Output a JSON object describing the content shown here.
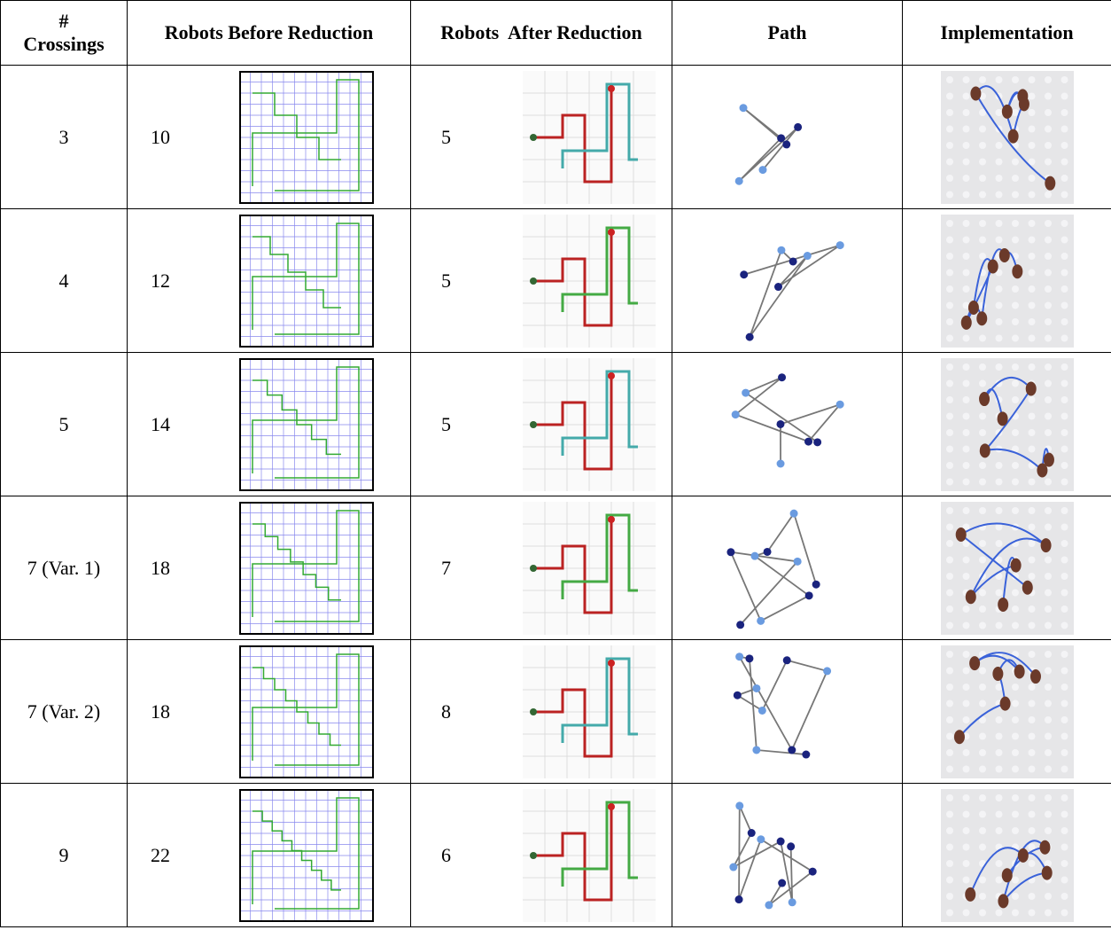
{
  "table": {
    "header": [
      "# Crossings",
      "Robots Before Reduction",
      "Robots  After Reduction",
      "Path",
      "Implementation"
    ],
    "rows": [
      {
        "crossings": "3",
        "before": 10,
        "after": 5
      },
      {
        "crossings": "4",
        "before": 12,
        "after": 5
      },
      {
        "crossings": "5",
        "before": 14,
        "after": 5
      },
      {
        "crossings": "7 (Var. 1)",
        "before": 18,
        "after": 7
      },
      {
        "crossings": "7 (Var. 2)",
        "before": 18,
        "after": 8
      },
      {
        "crossings": "9",
        "before": 22,
        "after": 6
      }
    ]
  }
}
